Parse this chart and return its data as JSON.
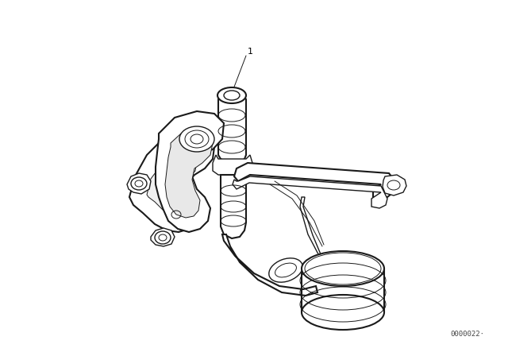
{
  "bg_color": "#ffffff",
  "line_color": "#1a1a1a",
  "label_color": "#000000",
  "part_number_text": "1",
  "watermark_text": "0000022·",
  "watermark_fontsize": 6.5,
  "label_fontsize": 8,
  "fig_width": 6.4,
  "fig_height": 4.48,
  "dpi": 100
}
